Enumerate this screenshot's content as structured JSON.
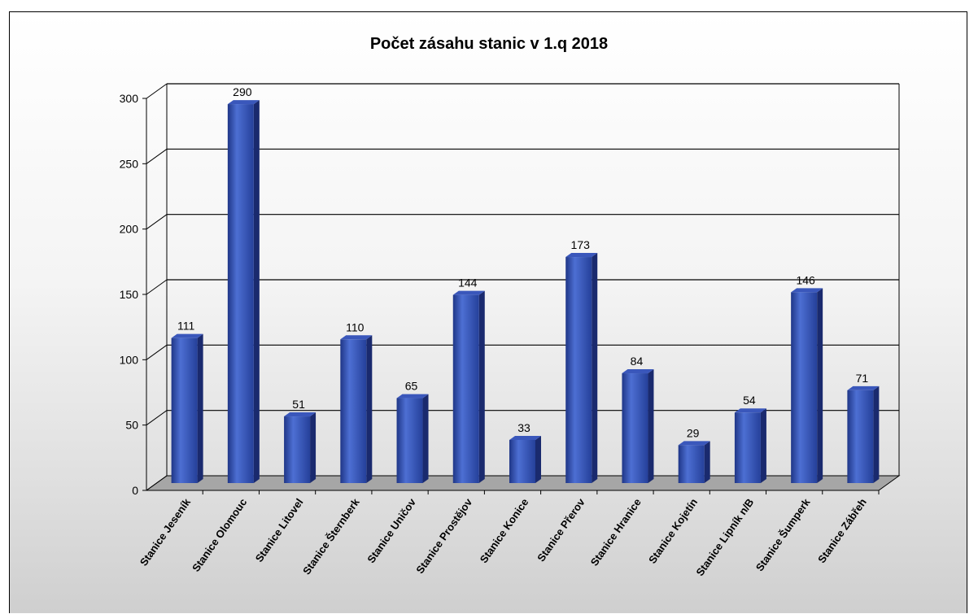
{
  "chart_data": {
    "type": "bar",
    "title": "Počet zásahu stanic v 1.q 2018",
    "xlabel": "",
    "ylabel": "",
    "categories": [
      "Stanice Jeseník",
      "Stanice Olomouc",
      "Stanice Litovel",
      "Stanice Šternberk",
      "Stanice Uničov",
      "Stanice Prostějov",
      "Stanice Konice",
      "Stanice Přerov",
      "Stanice Hranice",
      "Stanice Kojetín",
      "Stanice Lipník n/B",
      "Stanice Šumperk",
      "Stanice Zábřeh"
    ],
    "values": [
      111,
      290,
      51,
      110,
      65,
      144,
      33,
      173,
      84,
      29,
      54,
      146,
      71
    ],
    "ylim": [
      0,
      300
    ],
    "yticks": [
      0,
      50,
      100,
      150,
      200,
      250,
      300
    ],
    "grid": true,
    "legend": "none",
    "data_labels": true,
    "three_d": true,
    "colors": {
      "bar_front": "#2d4aa6",
      "bar_highlight": "#4d6fd3",
      "bar_side": "#1a2a6e",
      "bar_top": "#3a57bb",
      "floor": "#a6a6a6",
      "gridline": "#000000"
    }
  }
}
